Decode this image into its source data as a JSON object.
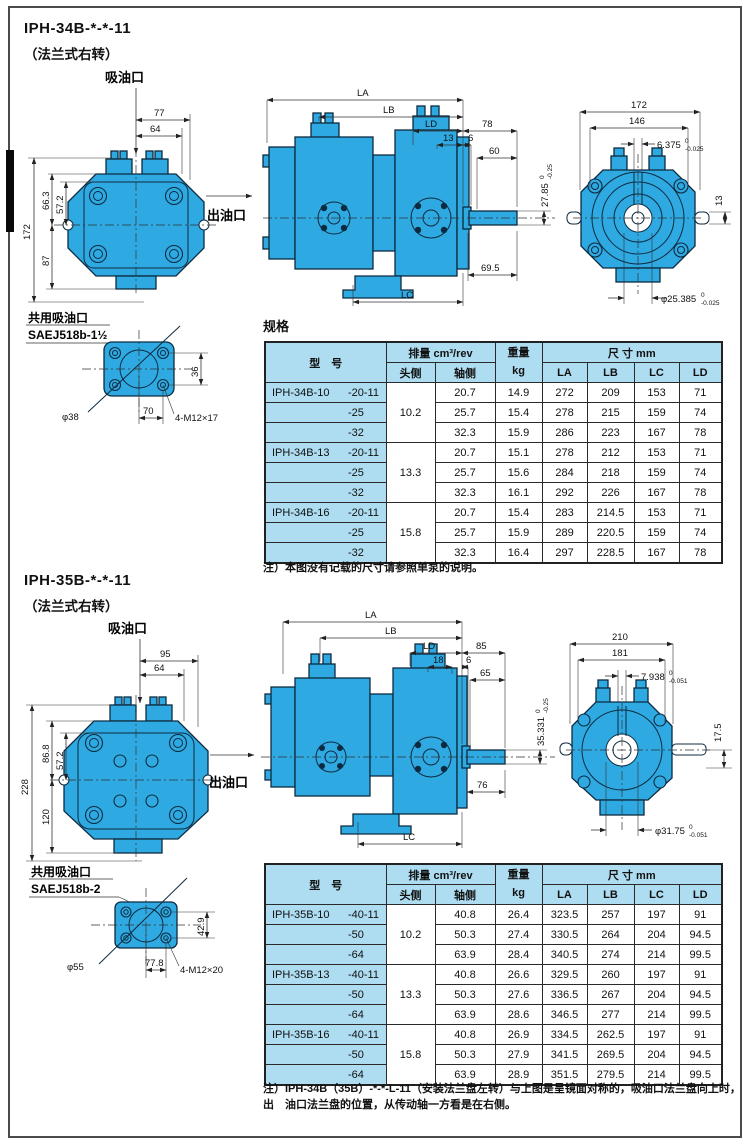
{
  "misc": {
    "tol_zero": "0",
    "spec_heading": "规格",
    "note1": "注）本图没有记载的尺寸请参照单泵的说明。",
    "note2a": "注）IPH-34B（35B）-*-*-L-11（安装法兰盘左转）与上图是呈镜面对称的，吸油口法兰盘向上时，出",
    "note2b": "油口法兰盘的位置，从传动轴一方看是在右侧。"
  },
  "s1": {
    "title": "IPH-34B-*-*-11",
    "subtitle": "（法兰式右转）",
    "labels": {
      "inlet": "吸油口",
      "outlet": "出油口",
      "shared_inlet": "共用吸油口",
      "sae": "SAEJ518b-1½"
    },
    "front": {
      "w77": "77",
      "w64": "64",
      "h172": "172",
      "h66": "66.3",
      "h57": "57.2",
      "h87": "87"
    },
    "side": {
      "la": "LA",
      "lb": "LB",
      "ld": "LD",
      "n13": "13",
      "n78": "78",
      "n6": "6",
      "n60": "60",
      "key": "27.85",
      "keyt": "-0.25",
      "n695": "69.5",
      "lc": "LC"
    },
    "rear": {
      "w172": "172",
      "w146": "146",
      "key": "6.375",
      "keyt": "-0.025",
      "n13": "13",
      "shaft": "φ25.385",
      "shaftt": "-0.025"
    },
    "port": {
      "dia": "φ38",
      "w": "70",
      "h": "36",
      "bolt": "4-M12×17"
    }
  },
  "s2": {
    "title": "IPH-35B-*-*-11",
    "subtitle": "（法兰式右转）",
    "labels": {
      "inlet": "吸油口",
      "outlet": "出油口",
      "shared_inlet": "共用吸油口",
      "sae": "SAEJ518b-2"
    },
    "front": {
      "w95": "95",
      "w64": "64",
      "h228": "228",
      "h868": "86.8",
      "h57": "57.2",
      "h120": "120"
    },
    "side": {
      "la": "LA",
      "lb": "LB",
      "ld": "LD",
      "n18": "18",
      "n85": "85",
      "n6": "6",
      "n65": "65",
      "key": "35.331",
      "keyt": "-0.25",
      "n76": "76",
      "lc": "LC"
    },
    "rear": {
      "w210": "210",
      "w181": "181",
      "key": "7.938",
      "keyt": "-0.051",
      "n175": "17.5",
      "shaft": "φ31.75",
      "shaftt": "-0.051"
    },
    "port": {
      "dia": "φ55",
      "w": "77.8",
      "h": "42.9",
      "bolt": "4-M12×20"
    }
  },
  "tables": [
    {
      "headers": {
        "model": "型　号",
        "disp": "排量  cm³/rev",
        "head": "头侧",
        "shaft": "轴侧",
        "weight": "重量",
        "kg": "kg",
        "dim": "尺 寸 mm",
        "la": "LA",
        "lb": "LB",
        "lc": "LC",
        "ld": "LD"
      },
      "groups": [
        {
          "model": "IPH-34B-10",
          "head": "10.2",
          "rows": [
            [
              "-20-11",
              "20.7",
              "14.9",
              "272",
              "209",
              "153",
              "71"
            ],
            [
              "-25",
              "25.7",
              "15.4",
              "278",
              "215",
              "159",
              "74"
            ],
            [
              "-32",
              "32.3",
              "15.9",
              "286",
              "223",
              "167",
              "78"
            ]
          ]
        },
        {
          "model": "IPH-34B-13",
          "head": "13.3",
          "rows": [
            [
              "-20-11",
              "20.7",
              "15.1",
              "278",
              "212",
              "153",
              "71"
            ],
            [
              "-25",
              "25.7",
              "15.6",
              "284",
              "218",
              "159",
              "74"
            ],
            [
              "-32",
              "32.3",
              "16.1",
              "292",
              "226",
              "167",
              "78"
            ]
          ]
        },
        {
          "model": "IPH-34B-16",
          "head": "15.8",
          "rows": [
            [
              "-20-11",
              "20.7",
              "15.4",
              "283",
              "214.5",
              "153",
              "71"
            ],
            [
              "-25",
              "25.7",
              "15.9",
              "289",
              "220.5",
              "159",
              "74"
            ],
            [
              "-32",
              "32.3",
              "16.4",
              "297",
              "228.5",
              "167",
              "78"
            ]
          ]
        }
      ]
    },
    {
      "headers": {
        "model": "型　号",
        "disp": "排量  cm³/rev",
        "head": "头侧",
        "shaft": "轴侧",
        "weight": "重量",
        "kg": "kg",
        "dim": "尺 寸 mm",
        "la": "LA",
        "lb": "LB",
        "lc": "LC",
        "ld": "LD"
      },
      "groups": [
        {
          "model": "IPH-35B-10",
          "head": "10.2",
          "rows": [
            [
              "-40-11",
              "40.8",
              "26.4",
              "323.5",
              "257",
              "197",
              "91"
            ],
            [
              "-50",
              "50.3",
              "27.4",
              "330.5",
              "264",
              "204",
              "94.5"
            ],
            [
              "-64",
              "63.9",
              "28.4",
              "340.5",
              "274",
              "214",
              "99.5"
            ]
          ]
        },
        {
          "model": "IPH-35B-13",
          "head": "13.3",
          "rows": [
            [
              "-40-11",
              "40.8",
              "26.6",
              "329.5",
              "260",
              "197",
              "91"
            ],
            [
              "-50",
              "50.3",
              "27.6",
              "336.5",
              "267",
              "204",
              "94.5"
            ],
            [
              "-64",
              "63.9",
              "28.6",
              "346.5",
              "277",
              "214",
              "99.5"
            ]
          ]
        },
        {
          "model": "IPH-35B-16",
          "head": "15.8",
          "rows": [
            [
              "-40-11",
              "40.8",
              "26.9",
              "334.5",
              "262.5",
              "197",
              "91"
            ],
            [
              "-50",
              "50.3",
              "27.9",
              "341.5",
              "269.5",
              "204",
              "94.5"
            ],
            [
              "-64",
              "63.9",
              "28.9",
              "351.5",
              "279.5",
              "214",
              "99.5"
            ]
          ]
        }
      ]
    }
  ]
}
